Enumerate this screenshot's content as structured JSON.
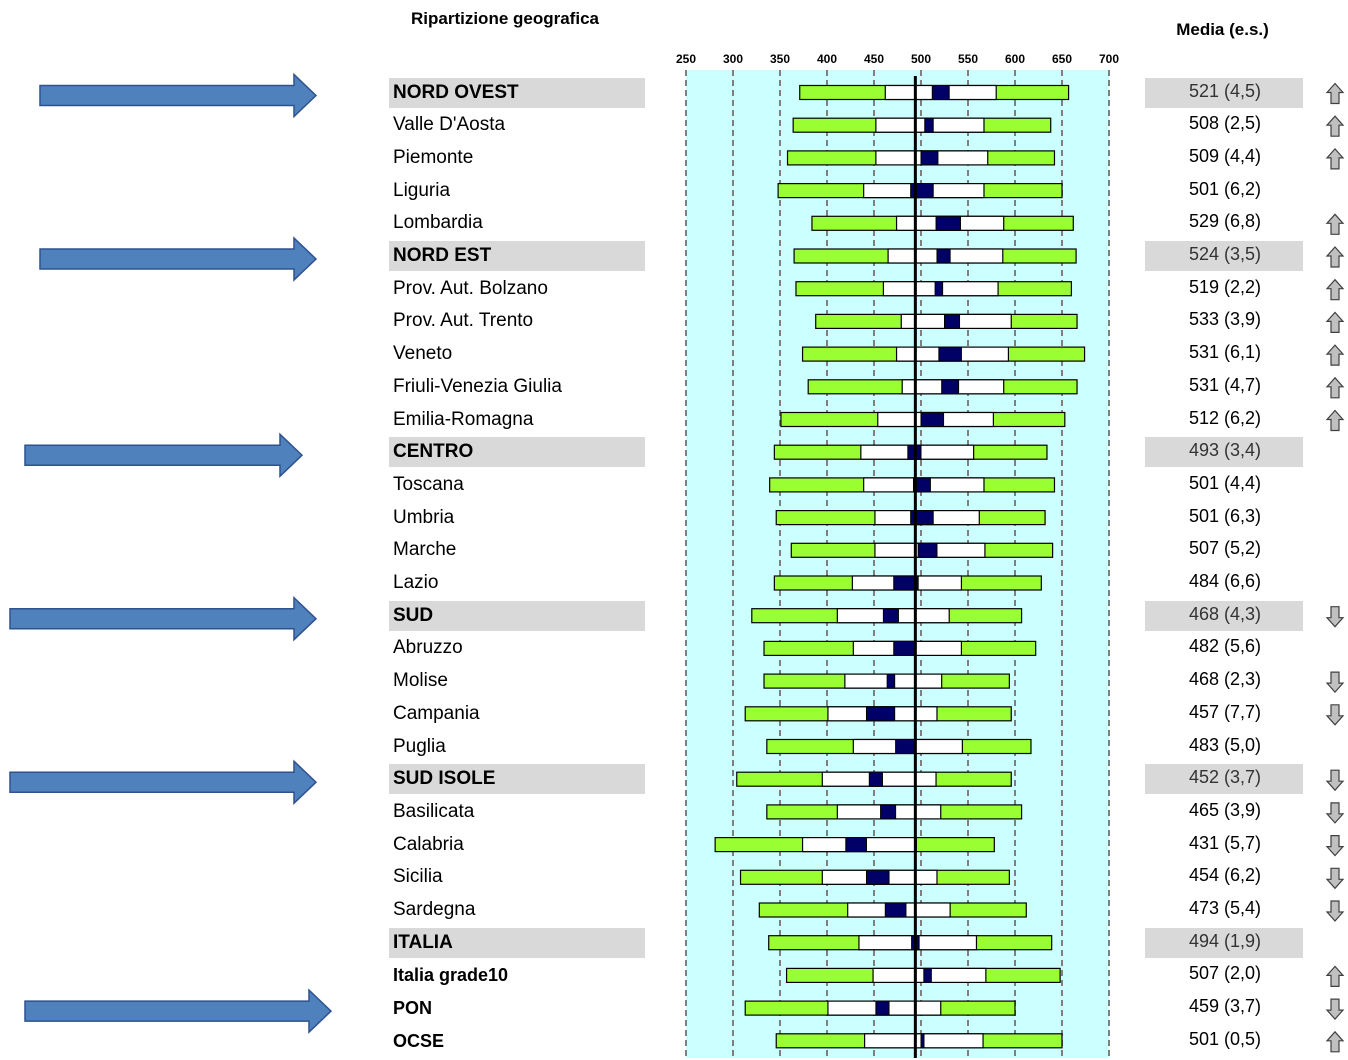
{
  "header": {
    "region_title": "Ripartizione geografica",
    "media_title": "Media (e.s.)"
  },
  "colors": {
    "band_background": "#ccffff",
    "percentile_outer": "#99ff33",
    "percentile_inner": "#ffffff",
    "mean_ci": "#000066",
    "group_row_background": "#d9d9d9",
    "big_arrow": "#4f81bd",
    "indicator_arrow": "#c0c0c0"
  },
  "chart_data": {
    "type": "percentile_bar",
    "title": "",
    "xlabel": "",
    "ylabel": "",
    "xlim": [
      250,
      700
    ],
    "x_ticks": [
      250,
      300,
      350,
      400,
      450,
      500,
      550,
      600,
      650,
      700
    ],
    "reference_value": 494,
    "rows": [
      {
        "name": "NORD OVEST",
        "group": true,
        "mean": 521,
        "se": "4,5",
        "mean_label": "521",
        "se_label": "(4,5)",
        "p5": 371,
        "p25": 462,
        "p75": 580,
        "p95": 657,
        "ci_low": 512,
        "ci_high": 530,
        "trend": "up"
      },
      {
        "name": "Valle D'Aosta",
        "group": false,
        "mean": 508,
        "se": "2,5",
        "mean_label": "508",
        "se_label": "(2,5)",
        "p5": 364,
        "p25": 452,
        "p75": 567,
        "p95": 638,
        "ci_low": 504,
        "ci_high": 513,
        "trend": "up"
      },
      {
        "name": "Piemonte",
        "group": false,
        "mean": 509,
        "se": "4,4",
        "mean_label": "509",
        "se_label": "(4,4)",
        "p5": 358,
        "p25": 452,
        "p75": 571,
        "p95": 642,
        "ci_low": 500,
        "ci_high": 518,
        "trend": "up"
      },
      {
        "name": "Liguria",
        "group": false,
        "mean": 501,
        "se": "6,2",
        "mean_label": "501",
        "se_label": "(6,2)",
        "p5": 348,
        "p25": 439,
        "p75": 567,
        "p95": 650,
        "ci_low": 489,
        "ci_high": 513,
        "trend": "none"
      },
      {
        "name": "Lombardia",
        "group": false,
        "mean": 529,
        "se": "6,8",
        "mean_label": "529",
        "se_label": "(6,8)",
        "p5": 384,
        "p25": 474,
        "p75": 588,
        "p95": 662,
        "ci_low": 516,
        "ci_high": 542,
        "trend": "up"
      },
      {
        "name": "NORD EST",
        "group": true,
        "mean": 524,
        "se": "3,5",
        "mean_label": "524",
        "se_label": "(3,5)",
        "p5": 365,
        "p25": 465,
        "p75": 587,
        "p95": 665,
        "ci_low": 517,
        "ci_high": 531,
        "trend": "up"
      },
      {
        "name": "Prov. Aut. Bolzano",
        "group": false,
        "mean": 519,
        "se": "2,2",
        "mean_label": "519",
        "se_label": "(2,2)",
        "p5": 367,
        "p25": 460,
        "p75": 582,
        "p95": 660,
        "ci_low": 515,
        "ci_high": 523,
        "trend": "up"
      },
      {
        "name": "Prov. Aut. Trento",
        "group": false,
        "mean": 533,
        "se": "3,9",
        "mean_label": "533",
        "se_label": "(3,9)",
        "p5": 388,
        "p25": 479,
        "p75": 596,
        "p95": 666,
        "ci_low": 525,
        "ci_high": 541,
        "trend": "up"
      },
      {
        "name": "Veneto",
        "group": false,
        "mean": 531,
        "se": "6,1",
        "mean_label": "531",
        "se_label": "(6,1)",
        "p5": 374,
        "p25": 474,
        "p75": 593,
        "p95": 674,
        "ci_low": 519,
        "ci_high": 543,
        "trend": "up"
      },
      {
        "name": "Friuli-Venezia Giulia",
        "group": false,
        "mean": 531,
        "se": "4,7",
        "mean_label": "531",
        "se_label": "(4,7)",
        "p5": 380,
        "p25": 480,
        "p75": 588,
        "p95": 666,
        "ci_low": 522,
        "ci_high": 540,
        "trend": "up"
      },
      {
        "name": "Emilia-Romagna",
        "group": false,
        "mean": 512,
        "se": "6,2",
        "mean_label": "512",
        "se_label": "(6,2)",
        "p5": 351,
        "p25": 454,
        "p75": 577,
        "p95": 653,
        "ci_low": 500,
        "ci_high": 524,
        "trend": "up"
      },
      {
        "name": "CENTRO",
        "group": true,
        "mean": 493,
        "se": "3,4",
        "mean_label": "493",
        "se_label": "(3,4)",
        "p5": 344,
        "p25": 436,
        "p75": 556,
        "p95": 634,
        "ci_low": 486,
        "ci_high": 500,
        "trend": "none"
      },
      {
        "name": "Toscana",
        "group": false,
        "mean": 501,
        "se": "4,4",
        "mean_label": "501",
        "se_label": "(4,4)",
        "p5": 339,
        "p25": 439,
        "p75": 567,
        "p95": 642,
        "ci_low": 492,
        "ci_high": 510,
        "trend": "none"
      },
      {
        "name": "Umbria",
        "group": false,
        "mean": 501,
        "se": "6,3",
        "mean_label": "501",
        "se_label": "(6,3)",
        "p5": 346,
        "p25": 451,
        "p75": 562,
        "p95": 632,
        "ci_low": 489,
        "ci_high": 513,
        "trend": "none"
      },
      {
        "name": "Marche",
        "group": false,
        "mean": 507,
        "se": "5,2",
        "mean_label": "507",
        "se_label": "(5,2)",
        "p5": 362,
        "p25": 451,
        "p75": 568,
        "p95": 640,
        "ci_low": 497,
        "ci_high": 517,
        "trend": "none"
      },
      {
        "name": "Lazio",
        "group": false,
        "mean": 484,
        "se": "6,6",
        "mean_label": "484",
        "se_label": "(6,6)",
        "p5": 344,
        "p25": 427,
        "p75": 543,
        "p95": 628,
        "ci_low": 471,
        "ci_high": 497,
        "trend": "none"
      },
      {
        "name": "SUD",
        "group": true,
        "mean": 468,
        "se": "4,3",
        "mean_label": "468",
        "se_label": "(4,3)",
        "p5": 320,
        "p25": 411,
        "p75": 530,
        "p95": 607,
        "ci_low": 460,
        "ci_high": 476,
        "trend": "down"
      },
      {
        "name": "Abruzzo",
        "group": false,
        "mean": 482,
        "se": "5,6",
        "mean_label": "482",
        "se_label": "(5,6)",
        "p5": 333,
        "p25": 428,
        "p75": 543,
        "p95": 622,
        "ci_low": 471,
        "ci_high": 493,
        "trend": "none"
      },
      {
        "name": "Molise",
        "group": false,
        "mean": 468,
        "se": "2,3",
        "mean_label": "468",
        "se_label": "(2,3)",
        "p5": 333,
        "p25": 419,
        "p75": 522,
        "p95": 594,
        "ci_low": 464,
        "ci_high": 472,
        "trend": "down"
      },
      {
        "name": "Campania",
        "group": false,
        "mean": 457,
        "se": "7,7",
        "mean_label": "457",
        "se_label": "(7,7)",
        "p5": 313,
        "p25": 401,
        "p75": 517,
        "p95": 596,
        "ci_low": 442,
        "ci_high": 472,
        "trend": "down"
      },
      {
        "name": "Puglia",
        "group": false,
        "mean": 483,
        "se": "5,0",
        "mean_label": "483",
        "se_label": "(5,0)",
        "p5": 336,
        "p25": 428,
        "p75": 544,
        "p95": 617,
        "ci_low": 473,
        "ci_high": 493,
        "trend": "none"
      },
      {
        "name": "SUD ISOLE",
        "group": true,
        "mean": 452,
        "se": "3,7",
        "mean_label": "452",
        "se_label": "(3,7)",
        "p5": 304,
        "p25": 395,
        "p75": 516,
        "p95": 596,
        "ci_low": 445,
        "ci_high": 459,
        "trend": "down"
      },
      {
        "name": "Basilicata",
        "group": false,
        "mean": 465,
        "se": "3,9",
        "mean_label": "465",
        "se_label": "(3,9)",
        "p5": 336,
        "p25": 411,
        "p75": 521,
        "p95": 607,
        "ci_low": 457,
        "ci_high": 473,
        "trend": "down"
      },
      {
        "name": "Calabria",
        "group": false,
        "mean": 431,
        "se": "5,7",
        "mean_label": "431",
        "se_label": "(5,7)",
        "p5": 281,
        "p25": 374,
        "p75": 495,
        "p95": 578,
        "ci_low": 420,
        "ci_high": 442,
        "trend": "down"
      },
      {
        "name": "Sicilia",
        "group": false,
        "mean": 454,
        "se": "6,2",
        "mean_label": "454",
        "se_label": "(6,2)",
        "p5": 308,
        "p25": 395,
        "p75": 517,
        "p95": 594,
        "ci_low": 442,
        "ci_high": 466,
        "trend": "down"
      },
      {
        "name": "Sardegna",
        "group": false,
        "mean": 473,
        "se": "5,4",
        "mean_label": "473",
        "se_label": "(5,4)",
        "p5": 328,
        "p25": 422,
        "p75": 531,
        "p95": 612,
        "ci_low": 462,
        "ci_high": 484,
        "trend": "down"
      },
      {
        "name": "ITALIA",
        "group": true,
        "mean": 494,
        "se": "1,9",
        "mean_label": "494",
        "se_label": "(1,9)",
        "p5": 338,
        "p25": 434,
        "p75": 559,
        "p95": 639,
        "ci_low": 490,
        "ci_high": 498,
        "trend": "none"
      },
      {
        "name": "Italia grade10",
        "group": false,
        "small_bold": true,
        "mean": 507,
        "se": "2,0",
        "mean_label": "507",
        "se_label": "(2,0)",
        "p5": 357,
        "p25": 449,
        "p75": 569,
        "p95": 648,
        "ci_low": 503,
        "ci_high": 511,
        "trend": "up"
      },
      {
        "name": "PON",
        "group": false,
        "small_bold": true,
        "mean": 459,
        "se": "3,7",
        "mean_label": "459",
        "se_label": "(3,7)",
        "p5": 313,
        "p25": 401,
        "p75": 521,
        "p95": 600,
        "ci_low": 452,
        "ci_high": 466,
        "trend": "down"
      },
      {
        "name": "OCSE",
        "group": false,
        "small_bold": true,
        "mean": 501,
        "se": "0,5",
        "mean_label": "501",
        "se_label": "(0,5)",
        "p5": 346,
        "p25": 440,
        "p75": 566,
        "p95": 650,
        "ci_low": 500,
        "ci_high": 502,
        "trend": "up"
      }
    ]
  },
  "big_arrows": [
    {
      "row": 0,
      "x_start": 40,
      "x_end": 316
    },
    {
      "row": 5,
      "x_start": 40,
      "x_end": 316
    },
    {
      "row": 11,
      "x_start": 25,
      "x_end": 302
    },
    {
      "row": 16,
      "x_start": 10,
      "x_end": 316
    },
    {
      "row": 21,
      "x_start": 10,
      "x_end": 316
    },
    {
      "row": 28,
      "x_start": 25,
      "x_end": 331
    }
  ]
}
